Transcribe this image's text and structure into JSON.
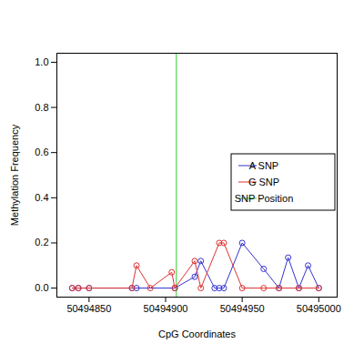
{
  "chart_data": {
    "type": "line",
    "xlabel": "CpG Coordinates",
    "ylabel": "Methylation Frequency",
    "xlim": [
      50494829,
      50495012
    ],
    "xticks": [
      50494850,
      50494900,
      50494950,
      50495000
    ],
    "ylim": [
      -0.04,
      1.04
    ],
    "yticks": [
      {
        "value": 0,
        "label": "0.0"
      },
      {
        "value": 0.2,
        "label": "0.2"
      },
      {
        "value": 0.4,
        "label": "0.4"
      },
      {
        "value": 0.6,
        "label": "0.6"
      },
      {
        "value": 0.8,
        "label": "0.8"
      },
      {
        "value": 1,
        "label": "1.0"
      }
    ],
    "legend": "right",
    "marker": "circle",
    "line_style": "solid",
    "series": [
      {
        "name": "A SNP",
        "color": "#3333cc",
        "x": [
          50494839,
          50494843,
          50494850,
          50494878,
          50494881,
          50494906,
          50494919,
          50494923,
          50494932,
          50494935,
          50494938,
          50494950,
          50494964,
          50494974,
          50494980,
          50494987,
          50494993,
          50495000
        ],
        "values": [
          0,
          0,
          0,
          0,
          0,
          0,
          0.05,
          0.12,
          0,
          0,
          0,
          0.2,
          0.085,
          0,
          0.135,
          0,
          0.1,
          0
        ]
      },
      {
        "name": "G SNP",
        "color": "#dd3333",
        "x": [
          50494839,
          50494843,
          50494850,
          50494878,
          50494881,
          50494890,
          50494904,
          50494906,
          50494919,
          50494923,
          50494935,
          50494938,
          50494950,
          50494964,
          50494974,
          50494987,
          50495000
        ],
        "values": [
          0,
          0,
          0,
          0,
          0.1,
          0,
          0.07,
          0,
          0.12,
          0,
          0.2,
          0.2,
          0,
          0,
          0,
          0,
          0
        ]
      }
    ],
    "snp_position": {
      "name": "SNP Position",
      "color": "#33cc33",
      "value": 50494907
    }
  }
}
